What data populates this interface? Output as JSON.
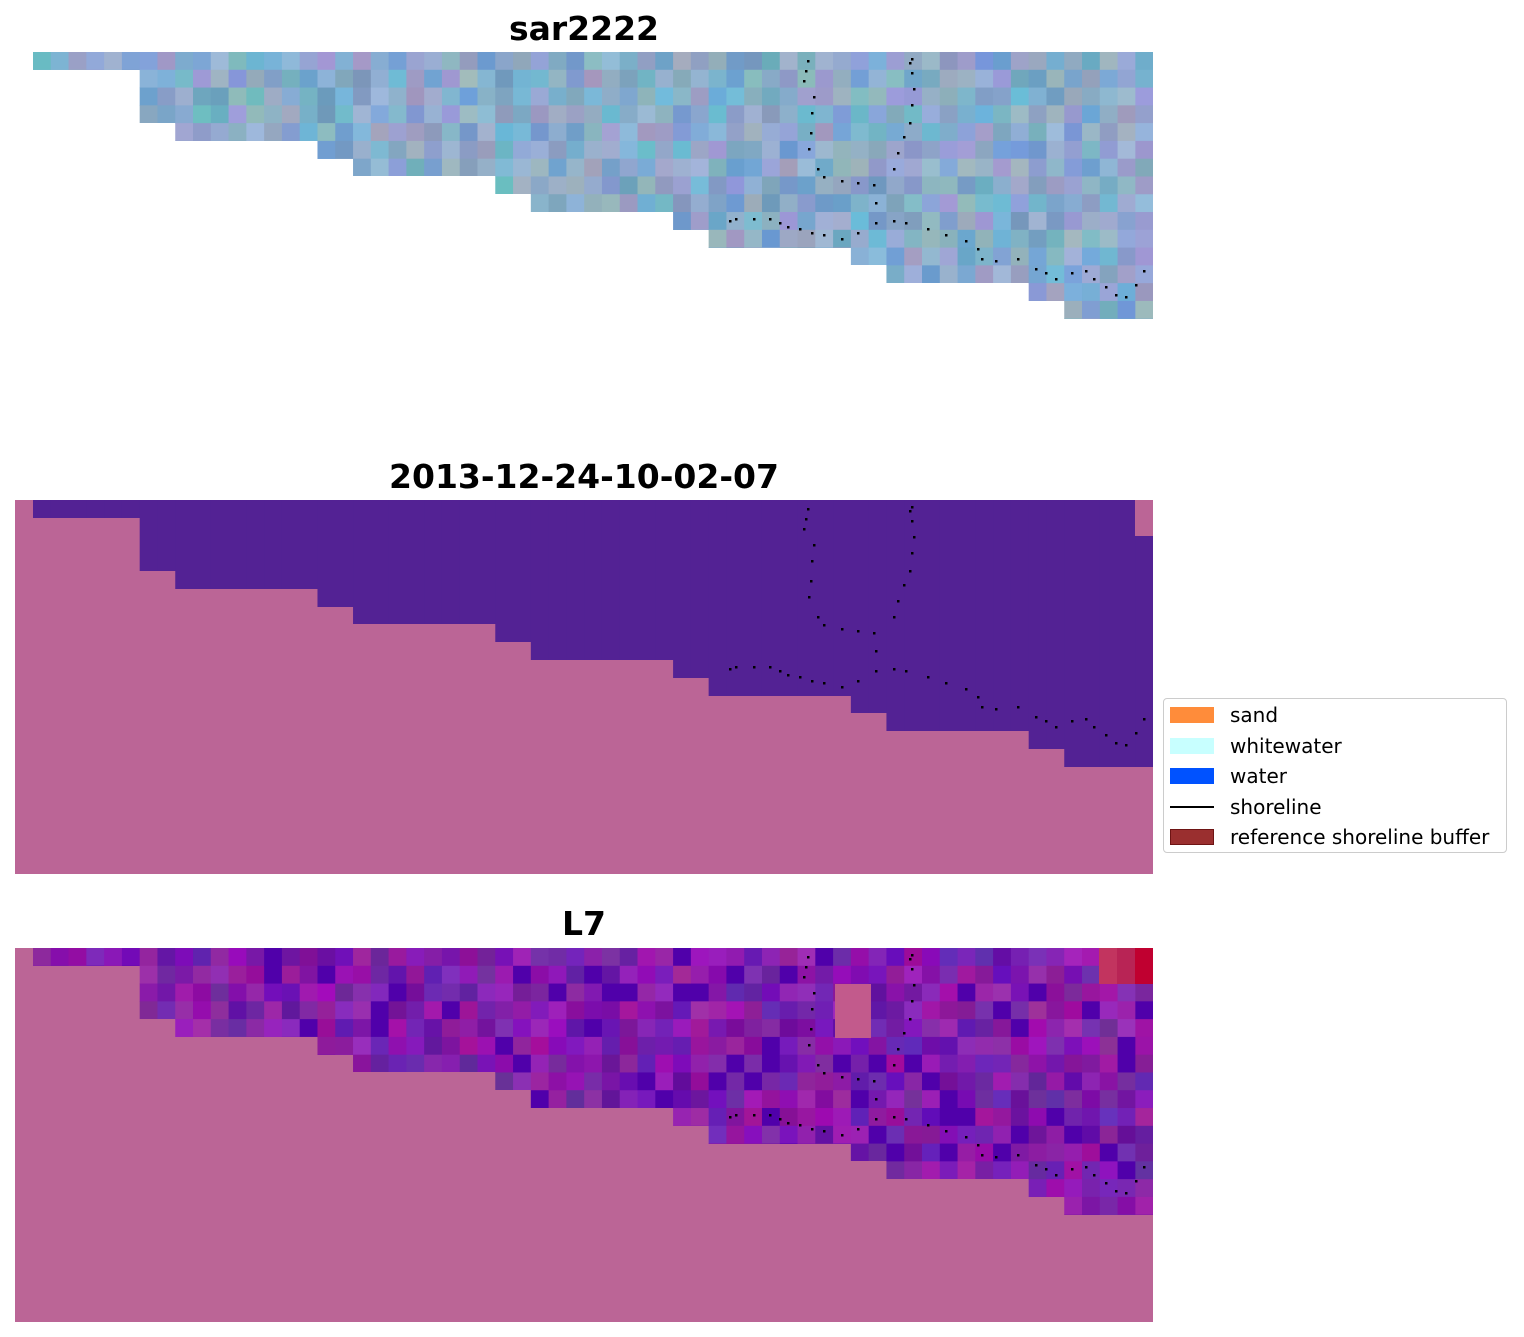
{
  "panels": [
    {
      "title": "sar2222"
    },
    {
      "title": "2013-12-24-10-02-07"
    },
    {
      "title": "L7"
    }
  ],
  "legend": {
    "items": [
      {
        "label": "sand",
        "color": "#ff8c3a",
        "kind": "patch"
      },
      {
        "label": "whitewater",
        "color": "#c8ffff",
        "kind": "patch"
      },
      {
        "label": "water",
        "color": "#0052ff",
        "kind": "patch"
      },
      {
        "label": "shoreline",
        "color": "#000000",
        "kind": "line"
      },
      {
        "label": "reference shoreline buffer",
        "color": "#9a2f2f",
        "kind": "patch"
      }
    ]
  },
  "colors": {
    "classified_land": "#bb6596",
    "classified_water": "#532294",
    "sar_base": "#7fa6c6",
    "l7_land": "#bb6596",
    "l7_water": "#6f1f9e",
    "shoreline_dots": "#000000"
  }
}
